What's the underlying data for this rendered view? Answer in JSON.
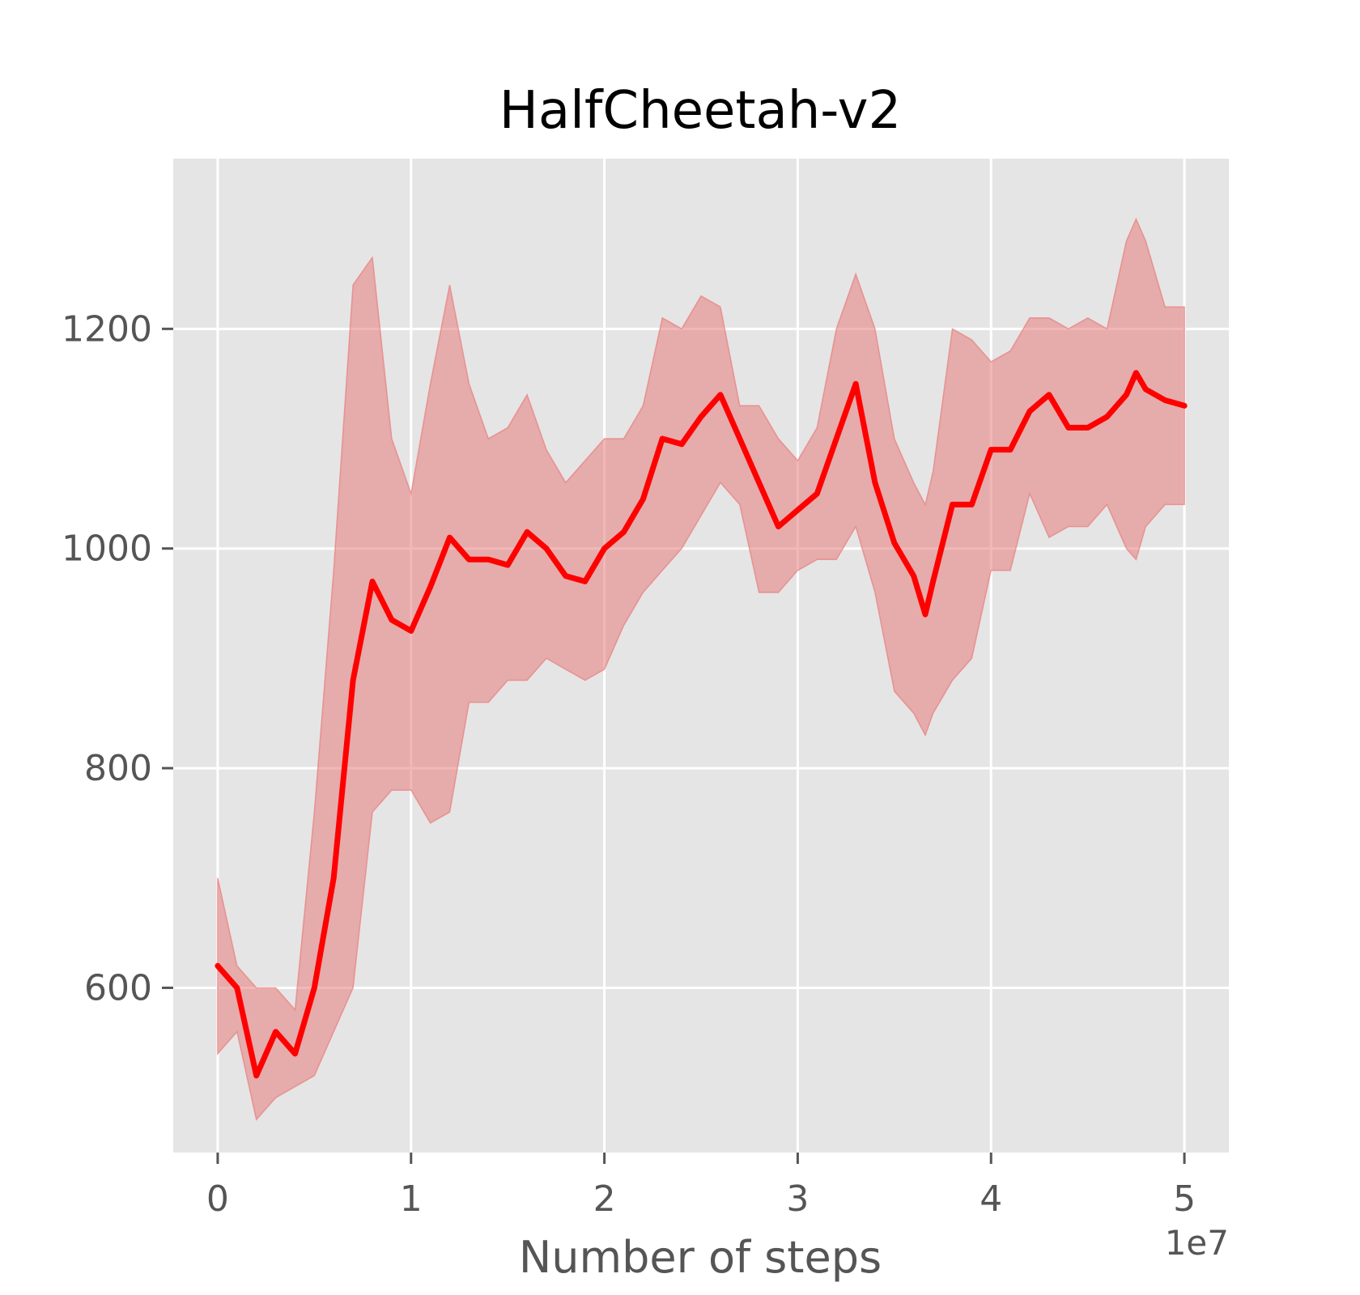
{
  "chart_data": {
    "type": "line",
    "title": "HalfCheetah-v2",
    "xlabel": "Number of steps",
    "ylabel": "",
    "x_offset_label": "1e7",
    "xlim": [
      -0.23,
      5.23
    ],
    "ylim": [
      450,
      1355
    ],
    "x_ticks": [
      0,
      1,
      2,
      3,
      4,
      5
    ],
    "y_ticks": [
      600,
      800,
      1000,
      1200
    ],
    "grid": true,
    "legend": "none",
    "colors": {
      "background": "#e5e5e5",
      "grid": "#ffffff",
      "line": "#ff0000",
      "band": "#e87c7c"
    },
    "series": [
      {
        "x": [
          0,
          0.1,
          0.2,
          0.3,
          0.4,
          0.5,
          0.6,
          0.7,
          0.8,
          0.9,
          1.0,
          1.1,
          1.2,
          1.3,
          1.4,
          1.5,
          1.6,
          1.7,
          1.8,
          1.9,
          2.0,
          2.1,
          2.2,
          2.3,
          2.4,
          2.5,
          2.6,
          2.7,
          2.8,
          2.9,
          3.0,
          3.1,
          3.2,
          3.3,
          3.4,
          3.5,
          3.6,
          3.66,
          3.7,
          3.8,
          3.9,
          4.0,
          4.1,
          4.2,
          4.3,
          4.4,
          4.5,
          4.6,
          4.7,
          4.75,
          4.8,
          4.9,
          5.0
        ],
        "mean": [
          620,
          600,
          520,
          560,
          540,
          600,
          700,
          880,
          970,
          935,
          925,
          965,
          1010,
          990,
          990,
          985,
          1015,
          1000,
          975,
          970,
          1000,
          1015,
          1045,
          1100,
          1095,
          1120,
          1140,
          1100,
          1060,
          1020,
          1035,
          1050,
          1100,
          1150,
          1060,
          1005,
          975,
          940,
          970,
          1040,
          1040,
          1090,
          1090,
          1125,
          1140,
          1110,
          1110,
          1120,
          1140,
          1160,
          1145,
          1135,
          1130
        ],
        "upper": [
          700,
          620,
          600,
          600,
          580,
          760,
          980,
          1240,
          1265,
          1100,
          1050,
          1150,
          1240,
          1150,
          1100,
          1110,
          1140,
          1090,
          1060,
          1080,
          1100,
          1100,
          1130,
          1210,
          1200,
          1230,
          1220,
          1130,
          1130,
          1100,
          1080,
          1110,
          1200,
          1250,
          1200,
          1100,
          1060,
          1040,
          1070,
          1200,
          1190,
          1170,
          1180,
          1210,
          1210,
          1200,
          1210,
          1200,
          1280,
          1300,
          1280,
          1220,
          1220
        ],
        "lower": [
          540,
          560,
          480,
          500,
          510,
          520,
          560,
          600,
          760,
          780,
          780,
          750,
          760,
          860,
          860,
          880,
          880,
          900,
          890,
          880,
          890,
          930,
          960,
          980,
          1000,
          1030,
          1060,
          1040,
          960,
          960,
          980,
          990,
          990,
          1020,
          960,
          870,
          850,
          830,
          850,
          880,
          900,
          980,
          980,
          1050,
          1010,
          1020,
          1020,
          1040,
          1000,
          990,
          1020,
          1040,
          1040
        ]
      }
    ]
  }
}
